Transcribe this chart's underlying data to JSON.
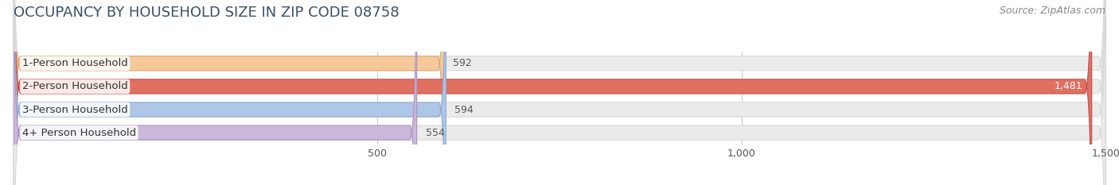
{
  "title": "OCCUPANCY BY HOUSEHOLD SIZE IN ZIP CODE 08758",
  "source": "Source: ZipAtlas.com",
  "categories": [
    "1-Person Household",
    "2-Person Household",
    "3-Person Household",
    "4+ Person Household"
  ],
  "values": [
    592,
    1481,
    594,
    554
  ],
  "bar_colors": [
    "#f5c99a",
    "#e07060",
    "#aec6e8",
    "#c9b8d8"
  ],
  "bar_edge_colors": [
    "#e0a870",
    "#c05050",
    "#90aad0",
    "#b090c0"
  ],
  "xlim": [
    0,
    1500
  ],
  "xticks": [
    500,
    1000,
    1500
  ],
  "background_color": "#ffffff",
  "bar_bg_color": "#ebebeb",
  "bar_bg_edge_color": "#d8d8d8",
  "title_fontsize": 13,
  "source_fontsize": 9,
  "label_fontsize": 9.5,
  "value_fontsize": 9,
  "tick_fontsize": 9,
  "bar_height": 0.62,
  "title_color": "#3a5068",
  "source_color": "#888888",
  "grid_color": "#cccccc",
  "label_bg_color": "#ffffff",
  "value_color_inside": "#ffffff",
  "value_color_outside": "#555555"
}
